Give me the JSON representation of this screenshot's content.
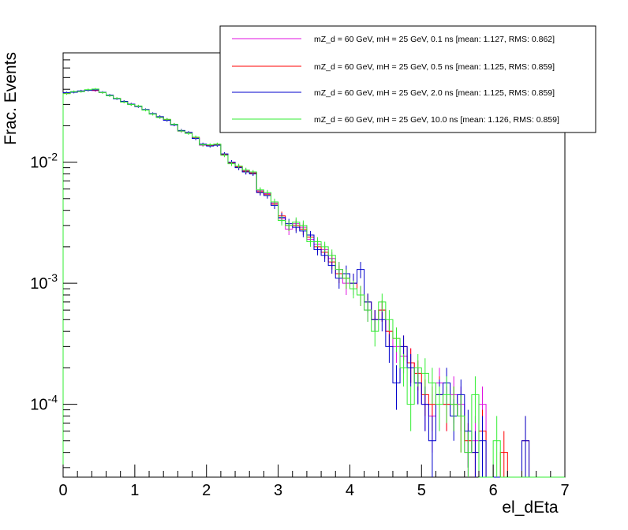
{
  "chart_data": {
    "type": "line",
    "style": "step-histogram-with-error-bars",
    "title": "",
    "xlabel": "el_dEta",
    "ylabel": "Frac. Events",
    "xlim": [
      0,
      7
    ],
    "ylim": [
      2.5e-05,
      0.08
    ],
    "yscale": "log",
    "grid": false,
    "legend_position": "top-right",
    "x_ticks": [
      "0",
      "1",
      "2",
      "3",
      "4",
      "5",
      "6",
      "7"
    ],
    "y_ticks": [
      {
        "base": "10",
        "exp": "-2",
        "value": 0.01
      },
      {
        "base": "10",
        "exp": "-3",
        "value": 0.001
      },
      {
        "base": "10",
        "exp": "-4",
        "value": 0.0001
      }
    ],
    "bin_width": 0.1,
    "x_bin_start": [
      0.0,
      0.1,
      0.2,
      0.3,
      0.4,
      0.5,
      0.6,
      0.7,
      0.8,
      0.9,
      1.0,
      1.1,
      1.2,
      1.3,
      1.4,
      1.5,
      1.6,
      1.7,
      1.8,
      1.9,
      2.0,
      2.1,
      2.2,
      2.3,
      2.4,
      2.5,
      2.6,
      2.7,
      2.8,
      2.9,
      3.0,
      3.1,
      3.2,
      3.3,
      3.4,
      3.5,
      3.6,
      3.7,
      3.8,
      3.9,
      4.0,
      4.1,
      4.2,
      4.3,
      4.4,
      4.5,
      4.6,
      4.7,
      4.8,
      4.9,
      5.0,
      5.1,
      5.2,
      5.3,
      5.4,
      5.5,
      5.6,
      5.7,
      5.8,
      5.9,
      6.0,
      6.1,
      6.2,
      6.3,
      6.4,
      6.5,
      6.6,
      6.7,
      6.8,
      6.9
    ],
    "series": [
      {
        "name": "mZ_d = 60 GeV, mH = 25 GeV, 0.1 ns [mean: 1.127, RMS: 0.862]",
        "color": "#e010e0",
        "values": [
          0.037,
          0.038,
          0.0385,
          0.0395,
          0.039,
          0.0375,
          0.0355,
          0.0335,
          0.0315,
          0.03,
          0.029,
          0.027,
          0.025,
          0.0235,
          0.0225,
          0.0205,
          0.018,
          0.0175,
          0.016,
          0.0138,
          0.0138,
          0.014,
          0.0115,
          0.0098,
          0.0092,
          0.0085,
          0.0082,
          0.0058,
          0.0055,
          0.0046,
          0.0034,
          0.0028,
          0.0031,
          0.0029,
          0.0023,
          0.0021,
          0.0019,
          0.0016,
          0.0013,
          0.001,
          0.001,
          0.0008,
          0.0006,
          0.0005,
          0.0006,
          0.0004,
          0.0003,
          0.00025,
          0.00022,
          0.00015,
          0.0001,
          8e-05,
          0.00015,
          0.0001,
          0.00012,
          0.0001,
          4e-05,
          5e-05,
          0.0001,
          0,
          0,
          0,
          0,
          0,
          0,
          0,
          0,
          0,
          0,
          0
        ],
        "errors": [
          0.0008,
          0.0008,
          0.0008,
          0.0008,
          0.0008,
          0.0008,
          0.0008,
          0.0007,
          0.0007,
          0.0007,
          0.0007,
          0.0006,
          0.0006,
          0.0006,
          0.0006,
          0.0005,
          0.0005,
          0.0005,
          0.0005,
          0.0004,
          0.0004,
          0.0004,
          0.0004,
          0.0004,
          0.0004,
          0.0004,
          0.0003,
          0.0003,
          0.0003,
          0.0003,
          0.0003,
          0.0003,
          0.0003,
          0.0003,
          0.0002,
          0.0002,
          0.0002,
          0.0002,
          0.0002,
          0.0002,
          0.0002,
          0.00015,
          0.00012,
          0.0001,
          0.00012,
          0.0001,
          8e-05,
          7e-05,
          7e-05,
          5e-05,
          4e-05,
          4e-05,
          5e-05,
          4e-05,
          5e-05,
          4e-05,
          2e-05,
          3e-05,
          4e-05,
          0,
          0,
          0,
          0,
          0,
          0,
          0,
          0,
          0,
          0,
          0
        ]
      },
      {
        "name": "mZ_d = 60 GeV, mH = 25 GeV, 0.5 ns [mean: 1.125, RMS: 0.859]",
        "color": "#ff0000",
        "values": [
          0.0372,
          0.0381,
          0.0386,
          0.0394,
          0.0392,
          0.0377,
          0.0356,
          0.0336,
          0.0316,
          0.0301,
          0.0289,
          0.0271,
          0.0251,
          0.0236,
          0.0224,
          0.0204,
          0.0182,
          0.0174,
          0.0158,
          0.014,
          0.0137,
          0.0139,
          0.0116,
          0.0099,
          0.0091,
          0.0084,
          0.0081,
          0.0057,
          0.0054,
          0.0045,
          0.0036,
          0.003,
          0.003,
          0.0028,
          0.0024,
          0.002,
          0.0018,
          0.0015,
          0.0012,
          0.0011,
          0.001,
          0.0008,
          0.0007,
          0.0005,
          0.0006,
          0.0004,
          0.00035,
          0.0003,
          0.00022,
          0.00018,
          0.00012,
          0.0001,
          0.00012,
          0.0001,
          0.0001,
          8e-05,
          5e-05,
          4e-05,
          6e-05,
          0,
          0,
          4e-05,
          0,
          0,
          5e-05,
          0,
          0,
          0,
          0,
          0
        ],
        "errors": [
          0.0008,
          0.0008,
          0.0008,
          0.0008,
          0.0008,
          0.0008,
          0.0008,
          0.0007,
          0.0007,
          0.0007,
          0.0007,
          0.0006,
          0.0006,
          0.0006,
          0.0006,
          0.0005,
          0.0005,
          0.0005,
          0.0005,
          0.0004,
          0.0004,
          0.0004,
          0.0004,
          0.0004,
          0.0004,
          0.0004,
          0.0003,
          0.0003,
          0.0003,
          0.0003,
          0.0003,
          0.0003,
          0.0003,
          0.0003,
          0.0002,
          0.0002,
          0.0002,
          0.0002,
          0.0002,
          0.0002,
          0.0002,
          0.00015,
          0.00012,
          0.0001,
          0.00012,
          0.0001,
          8e-05,
          7e-05,
          7e-05,
          5e-05,
          4e-05,
          4e-05,
          5e-05,
          4e-05,
          4e-05,
          4e-05,
          2e-05,
          2e-05,
          3e-05,
          0,
          0,
          2e-05,
          0,
          0,
          3e-05,
          0,
          0,
          0,
          0,
          0
        ]
      },
      {
        "name": "mZ_d = 60 GeV, mH = 25 GeV, 2.0 ns [mean: 1.125, RMS: 0.859]",
        "color": "#0000cc",
        "values": [
          0.0375,
          0.0378,
          0.0388,
          0.0392,
          0.0395,
          0.0378,
          0.0358,
          0.0334,
          0.0318,
          0.0302,
          0.0288,
          0.0272,
          0.0252,
          0.0238,
          0.0222,
          0.0203,
          0.0183,
          0.0176,
          0.0157,
          0.0141,
          0.0136,
          0.0138,
          0.0117,
          0.01,
          0.009,
          0.0083,
          0.008,
          0.0056,
          0.0053,
          0.0044,
          0.0035,
          0.0031,
          0.0029,
          0.0027,
          0.0025,
          0.0019,
          0.0017,
          0.0014,
          0.0011,
          0.0012,
          0.001,
          0.0013,
          0.0007,
          0.0005,
          0.0005,
          0.0003,
          0.00015,
          0.0003,
          0.0002,
          0.00015,
          0.0001,
          5e-05,
          0.00012,
          0.00015,
          8e-05,
          0.00012,
          6e-05,
          4e-05,
          5e-05,
          0,
          0,
          0,
          0,
          0,
          5e-05,
          0,
          0,
          0,
          0,
          0
        ],
        "errors": [
          0.0008,
          0.0008,
          0.0008,
          0.0008,
          0.0008,
          0.0008,
          0.0008,
          0.0007,
          0.0007,
          0.0007,
          0.0007,
          0.0006,
          0.0006,
          0.0006,
          0.0006,
          0.0005,
          0.0005,
          0.0005,
          0.0005,
          0.0004,
          0.0004,
          0.0004,
          0.0004,
          0.0004,
          0.0004,
          0.0004,
          0.0003,
          0.0003,
          0.0003,
          0.0003,
          0.0003,
          0.0003,
          0.0003,
          0.0003,
          0.0002,
          0.0002,
          0.0002,
          0.0002,
          0.0002,
          0.0002,
          0.0002,
          0.0002,
          0.00012,
          0.0001,
          0.0001,
          8e-05,
          6e-05,
          7e-05,
          6e-05,
          5e-05,
          4e-05,
          3e-05,
          4e-05,
          5e-05,
          3e-05,
          4e-05,
          3e-05,
          2e-05,
          3e-05,
          0,
          0,
          0,
          0,
          0,
          3e-05,
          0,
          0,
          0,
          0,
          0
        ]
      },
      {
        "name": "mZ_d = 60 GeV, mH = 25 GeV, 10.0 ns [mean: 1.126, RMS: 0.859]",
        "color": "#33ee33",
        "values": [
          0.0368,
          0.0383,
          0.0383,
          0.0397,
          0.0402,
          0.0376,
          0.0354,
          0.0337,
          0.0314,
          0.0299,
          0.0291,
          0.0269,
          0.0249,
          0.0234,
          0.0226,
          0.0206,
          0.0181,
          0.0173,
          0.0161,
          0.0139,
          0.0139,
          0.0141,
          0.0114,
          0.0097,
          0.0093,
          0.0086,
          0.0083,
          0.0059,
          0.0056,
          0.0047,
          0.0033,
          0.003,
          0.0032,
          0.003,
          0.0022,
          0.0022,
          0.002,
          0.0017,
          0.0013,
          0.0011,
          0.0009,
          0.0008,
          0.0006,
          0.0004,
          0.0007,
          0.0005,
          0.00035,
          0.0002,
          0.0001,
          0.0002,
          0.00018,
          0.00015,
          0.0001,
          0.00012,
          0.0001,
          8e-05,
          4e-05,
          0.00012,
          0,
          0,
          5e-05,
          0,
          0,
          0,
          0,
          0,
          0,
          0,
          0,
          0
        ],
        "errors": [
          0.0008,
          0.0008,
          0.0008,
          0.0008,
          0.0008,
          0.0008,
          0.0008,
          0.0007,
          0.0007,
          0.0007,
          0.0007,
          0.0006,
          0.0006,
          0.0006,
          0.0006,
          0.0005,
          0.0005,
          0.0005,
          0.0005,
          0.0004,
          0.0004,
          0.0004,
          0.0004,
          0.0004,
          0.0004,
          0.0004,
          0.0003,
          0.0003,
          0.0003,
          0.0003,
          0.0003,
          0.0003,
          0.0003,
          0.0003,
          0.0002,
          0.0002,
          0.0002,
          0.0002,
          0.0002,
          0.0002,
          0.00015,
          0.00015,
          0.00012,
          0.0001,
          0.00012,
          0.0001,
          8e-05,
          6e-05,
          4e-05,
          6e-05,
          6e-05,
          5e-05,
          4e-05,
          5e-05,
          4e-05,
          4e-05,
          2e-05,
          5e-05,
          0,
          0,
          3e-05,
          0,
          0,
          0,
          0,
          0,
          0,
          0,
          0,
          0
        ]
      }
    ]
  }
}
